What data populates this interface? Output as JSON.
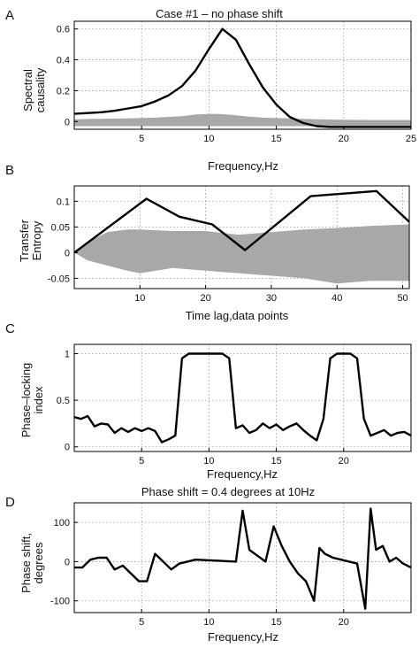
{
  "chart_data": [
    {
      "panel": "A",
      "type": "line",
      "title": "Case #1 – no phase shift",
      "xlabel": "Frequency,Hz",
      "ylabel": [
        "Spectral",
        "causality"
      ],
      "xlim": [
        0,
        25
      ],
      "ylim": [
        -0.05,
        0.65
      ],
      "xticks": [
        5,
        10,
        15,
        20,
        25
      ],
      "yticks": [
        0,
        0.2,
        0.4,
        0.6
      ],
      "ytick_labels": [
        "0",
        "0.2",
        "0.4",
        "0.6"
      ],
      "grid": true,
      "band": {
        "x": [
          0,
          2,
          4,
          6,
          8,
          9,
          10,
          11,
          12,
          13,
          14,
          16,
          18,
          20,
          22,
          25
        ],
        "upper": [
          0.015,
          0.018,
          0.02,
          0.025,
          0.035,
          0.045,
          0.05,
          0.048,
          0.04,
          0.032,
          0.025,
          0.02,
          0.015,
          0.012,
          0.01,
          0.01
        ],
        "lower": [
          -0.03,
          -0.03,
          -0.03,
          -0.03,
          -0.03,
          -0.03,
          -0.03,
          -0.03,
          -0.03,
          -0.03,
          -0.03,
          -0.03,
          -0.03,
          -0.03,
          -0.03,
          -0.03
        ]
      },
      "series": [
        {
          "x": [
            0,
            1,
            2,
            3,
            4,
            5,
            6,
            7,
            8,
            9,
            10,
            11,
            12,
            13,
            14,
            15,
            16,
            17,
            18,
            19,
            20,
            21,
            22,
            23,
            24,
            25
          ],
          "values": [
            0.05,
            0.055,
            0.06,
            0.07,
            0.085,
            0.1,
            0.13,
            0.17,
            0.23,
            0.33,
            0.47,
            0.6,
            0.53,
            0.37,
            0.22,
            0.11,
            0.03,
            -0.01,
            -0.03,
            -0.035,
            -0.035,
            -0.035,
            -0.035,
            -0.035,
            -0.035,
            -0.035
          ]
        }
      ]
    },
    {
      "panel": "B",
      "type": "line",
      "xlabel": "Time lag,data points",
      "ylabel": [
        "Transfer",
        "Entropy"
      ],
      "xlim": [
        0,
        51
      ],
      "ylim": [
        -0.07,
        0.13
      ],
      "xticks": [
        10,
        20,
        30,
        40,
        50
      ],
      "yticks": [
        -0.05,
        0,
        0.05,
        0.1
      ],
      "ytick_labels": [
        "-0.05",
        "0",
        "0.05",
        "0.1"
      ],
      "grid": true,
      "band": {
        "x": [
          0,
          2,
          5,
          8,
          10,
          15,
          20,
          25,
          30,
          35,
          40,
          45,
          51
        ],
        "upper": [
          0,
          0.02,
          0.04,
          0.045,
          0.045,
          0.042,
          0.042,
          0.035,
          0.04,
          0.045,
          0.048,
          0.052,
          0.055
        ],
        "lower": [
          0,
          -0.015,
          -0.025,
          -0.035,
          -0.04,
          -0.03,
          -0.035,
          -0.04,
          -0.045,
          -0.05,
          -0.06,
          -0.055,
          -0.055
        ]
      },
      "series": [
        {
          "x": [
            0,
            11,
            16,
            21,
            26,
            36,
            46,
            51
          ],
          "values": [
            0,
            0.105,
            0.07,
            0.055,
            0.005,
            0.11,
            0.12,
            0.06
          ]
        }
      ]
    },
    {
      "panel": "C",
      "type": "line",
      "xlabel": "Frequency,Hz",
      "ylabel": [
        "Phase–locking",
        "index"
      ],
      "xlim": [
        0,
        25
      ],
      "ylim": [
        -0.05,
        1.1
      ],
      "xticks": [
        5,
        10,
        15,
        20
      ],
      "yticks": [
        0,
        0.5,
        1
      ],
      "ytick_labels": [
        "0",
        "0.5",
        "1"
      ],
      "grid": true,
      "series": [
        {
          "x": [
            0,
            0.5,
            1,
            1.5,
            2,
            2.5,
            3,
            3.5,
            4,
            4.5,
            5,
            5.5,
            6,
            6.5,
            7,
            7.5,
            8,
            8.5,
            9,
            9.5,
            10,
            10.5,
            11,
            11.5,
            12,
            12.5,
            13,
            13.5,
            14,
            14.5,
            15,
            15.5,
            16,
            16.5,
            17,
            17.5,
            18,
            18.5,
            19,
            19.5,
            20,
            20.5,
            21,
            21.5,
            22,
            22.5,
            23,
            23.5,
            24,
            24.5,
            25
          ],
          "values": [
            0.32,
            0.3,
            0.33,
            0.22,
            0.25,
            0.24,
            0.15,
            0.2,
            0.16,
            0.2,
            0.17,
            0.2,
            0.17,
            0.05,
            0.08,
            0.12,
            0.95,
            1.0,
            1.0,
            1.0,
            1.0,
            1.0,
            1.0,
            0.95,
            0.2,
            0.23,
            0.15,
            0.18,
            0.25,
            0.2,
            0.24,
            0.18,
            0.22,
            0.25,
            0.18,
            0.12,
            0.07,
            0.3,
            0.95,
            1.0,
            1.0,
            1.0,
            0.95,
            0.3,
            0.12,
            0.15,
            0.18,
            0.12,
            0.15,
            0.16,
            0.12
          ]
        }
      ]
    },
    {
      "panel": "D",
      "type": "line",
      "title": "Phase shift = 0.4 degrees at 10Hz",
      "xlabel": "Frequency,Hz",
      "ylabel": [
        "Phase shift,",
        "degrees"
      ],
      "xlim": [
        0,
        25
      ],
      "ylim": [
        -130,
        150
      ],
      "xticks": [
        5,
        10,
        15,
        20
      ],
      "yticks": [
        -100,
        0,
        100
      ],
      "ytick_labels": [
        "-100",
        "0",
        "100"
      ],
      "grid": true,
      "series": [
        {
          "x": [
            0,
            0.6,
            1.2,
            1.8,
            2.4,
            3,
            3.6,
            4.2,
            4.8,
            5.4,
            6,
            6.6,
            7.2,
            7.8,
            8.4,
            9,
            12,
            12.5,
            13,
            13.6,
            14.2,
            14.8,
            15.4,
            16,
            16.6,
            17.2,
            17.8,
            18.2,
            18.6,
            19.2,
            19.8,
            20.4,
            21,
            21.6,
            22,
            22.4,
            22.9,
            23.4,
            23.9,
            24.4,
            25
          ],
          "values": [
            -15,
            -15,
            5,
            10,
            10,
            -20,
            -10,
            -30,
            -50,
            -50,
            20,
            0,
            -20,
            -5,
            0,
            5,
            0,
            130,
            30,
            15,
            0,
            90,
            40,
            0,
            -30,
            -50,
            -100,
            35,
            20,
            10,
            5,
            0,
            -5,
            -120,
            135,
            30,
            40,
            0,
            10,
            -5,
            -15
          ]
        }
      ]
    }
  ]
}
